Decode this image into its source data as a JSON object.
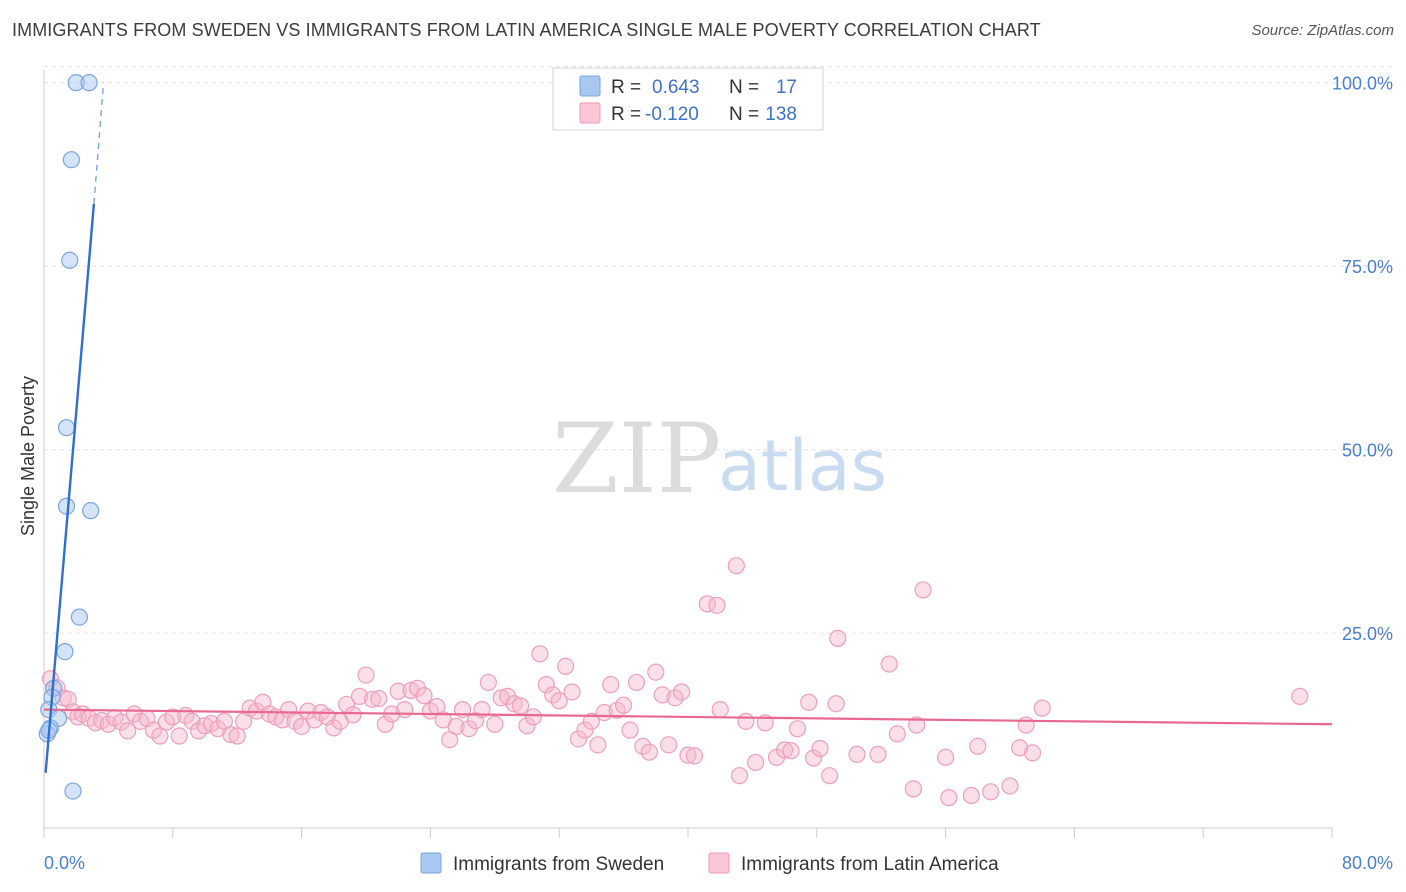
{
  "title": "IMMIGRANTS FROM SWEDEN VS IMMIGRANTS FROM LATIN AMERICA SINGLE MALE POVERTY CORRELATION CHART",
  "source": "Source: ZipAtlas.com",
  "watermark": {
    "zip": "ZIP",
    "atlas": "atlas"
  },
  "colors": {
    "sweden": "#a9c8f0",
    "sweden_line": "#2f6fcf",
    "latam": "#f5b8cb",
    "latam_line": "#e8688f",
    "axis_text": "#4a7fd1"
  },
  "legend": {
    "r_label": "R =",
    "n_label": "N =",
    "sweden": {
      "r": "0.643",
      "n": "17"
    },
    "latam": {
      "r": "-0.120",
      "n": "138"
    }
  },
  "chart_data": {
    "type": "scatter",
    "title": "IMMIGRANTS FROM SWEDEN VS IMMIGRANTS FROM LATIN AMERICA SINGLE MALE POVERTY CORRELATION CHART",
    "xlabel": "",
    "ylabel": "Single Male Poverty",
    "xlim": [
      0,
      80
    ],
    "ylim": [
      0,
      105
    ],
    "x_tick_labels": [
      "0.0%",
      "80.0%"
    ],
    "y_ticks": [
      25,
      50,
      75,
      100
    ],
    "y_tick_labels": [
      "25.0%",
      "50.0%",
      "75.0%",
      "100.0%"
    ],
    "grid": true,
    "series": [
      {
        "name": "Immigrants from Sweden",
        "points": [
          [
            2.0,
            100.0
          ],
          [
            2.8,
            100.0
          ],
          [
            1.7,
            89.5
          ],
          [
            1.6,
            75.8
          ],
          [
            1.4,
            53.0
          ],
          [
            1.4,
            42.3
          ],
          [
            2.9,
            41.7
          ],
          [
            2.2,
            27.2
          ],
          [
            1.3,
            22.5
          ],
          [
            0.6,
            17.5
          ],
          [
            0.5,
            16.3
          ],
          [
            0.3,
            14.6
          ],
          [
            0.9,
            13.4
          ],
          [
            0.4,
            12.1
          ],
          [
            0.2,
            11.3
          ],
          [
            0.3,
            11.8
          ],
          [
            1.8,
            3.5
          ]
        ],
        "trend": {
          "x0": 0.1,
          "y0": 6.0,
          "x1": 3.1,
          "y1": 83.5,
          "dashed_to_x": 3.7,
          "dashed_to_y": 100.0
        }
      },
      {
        "name": "Immigrants from Latin America",
        "points": [
          [
            0.4,
            18.8
          ],
          [
            0.8,
            17.6
          ],
          [
            1.2,
            16.2
          ],
          [
            1.5,
            16.0
          ],
          [
            1.8,
            14.3
          ],
          [
            2.1,
            13.6
          ],
          [
            2.4,
            14.0
          ],
          [
            2.8,
            13.4
          ],
          [
            3.2,
            12.8
          ],
          [
            3.6,
            13.1
          ],
          [
            4.0,
            12.6
          ],
          [
            4.4,
            13.5
          ],
          [
            4.8,
            12.9
          ],
          [
            5.2,
            11.7
          ],
          [
            5.6,
            14.0
          ],
          [
            6.0,
            13.0
          ],
          [
            6.4,
            13.4
          ],
          [
            6.8,
            11.8
          ],
          [
            7.2,
            11.0
          ],
          [
            7.6,
            12.9
          ],
          [
            8.0,
            13.6
          ],
          [
            8.4,
            11.0
          ],
          [
            8.8,
            13.8
          ],
          [
            9.2,
            13.0
          ],
          [
            9.6,
            11.7
          ],
          [
            10.0,
            12.4
          ],
          [
            10.4,
            12.7
          ],
          [
            10.8,
            12.0
          ],
          [
            11.2,
            13.0
          ],
          [
            11.6,
            11.2
          ],
          [
            12.0,
            11.0
          ],
          [
            12.4,
            13.0
          ],
          [
            12.8,
            14.8
          ],
          [
            13.2,
            14.4
          ],
          [
            13.6,
            15.6
          ],
          [
            14.0,
            14.0
          ],
          [
            14.4,
            13.6
          ],
          [
            14.8,
            13.2
          ],
          [
            15.2,
            14.6
          ],
          [
            15.6,
            13.0
          ],
          [
            16.0,
            12.3
          ],
          [
            16.4,
            14.4
          ],
          [
            16.8,
            13.2
          ],
          [
            17.2,
            14.2
          ],
          [
            17.6,
            13.6
          ],
          [
            18.0,
            12.1
          ],
          [
            18.4,
            13.0
          ],
          [
            18.8,
            15.3
          ],
          [
            19.2,
            13.9
          ],
          [
            19.6,
            16.4
          ],
          [
            20.0,
            19.3
          ],
          [
            20.4,
            16.0
          ],
          [
            20.8,
            16.1
          ],
          [
            21.2,
            12.6
          ],
          [
            21.6,
            14.0
          ],
          [
            22.0,
            17.1
          ],
          [
            22.4,
            14.6
          ],
          [
            22.8,
            17.2
          ],
          [
            23.2,
            17.5
          ],
          [
            23.6,
            16.5
          ],
          [
            24.0,
            14.4
          ],
          [
            24.4,
            15.0
          ],
          [
            24.8,
            13.2
          ],
          [
            25.2,
            10.5
          ],
          [
            25.6,
            12.3
          ],
          [
            26.0,
            14.6
          ],
          [
            26.4,
            12.0
          ],
          [
            26.8,
            13.1
          ],
          [
            27.2,
            14.6
          ],
          [
            27.6,
            18.3
          ],
          [
            28.0,
            12.6
          ],
          [
            28.4,
            16.2
          ],
          [
            28.8,
            16.4
          ],
          [
            29.2,
            15.4
          ],
          [
            29.6,
            15.1
          ],
          [
            30.0,
            12.4
          ],
          [
            30.4,
            13.6
          ],
          [
            30.8,
            22.2
          ],
          [
            31.2,
            18.0
          ],
          [
            31.6,
            16.6
          ],
          [
            32.0,
            15.8
          ],
          [
            32.4,
            20.5
          ],
          [
            32.8,
            17.0
          ],
          [
            33.2,
            10.6
          ],
          [
            33.6,
            11.8
          ],
          [
            34.0,
            13.0
          ],
          [
            34.4,
            9.8
          ],
          [
            34.8,
            14.2
          ],
          [
            35.2,
            18.0
          ],
          [
            35.6,
            14.5
          ],
          [
            36.0,
            15.2
          ],
          [
            36.4,
            11.8
          ],
          [
            36.8,
            18.3
          ],
          [
            37.2,
            9.6
          ],
          [
            37.6,
            8.8
          ],
          [
            38.0,
            19.7
          ],
          [
            38.4,
            16.6
          ],
          [
            38.8,
            9.8
          ],
          [
            39.2,
            16.2
          ],
          [
            39.6,
            17.0
          ],
          [
            40.0,
            8.4
          ],
          [
            40.4,
            8.3
          ],
          [
            41.2,
            29.0
          ],
          [
            41.8,
            28.8
          ],
          [
            42.0,
            14.6
          ],
          [
            43.0,
            34.2
          ],
          [
            43.2,
            5.6
          ],
          [
            43.6,
            13.0
          ],
          [
            44.2,
            7.4
          ],
          [
            44.8,
            12.8
          ],
          [
            45.5,
            8.1
          ],
          [
            46.0,
            9.1
          ],
          [
            46.4,
            9.0
          ],
          [
            46.8,
            12.0
          ],
          [
            47.5,
            15.6
          ],
          [
            47.8,
            8.0
          ],
          [
            48.2,
            9.3
          ],
          [
            48.8,
            5.6
          ],
          [
            49.2,
            15.4
          ],
          [
            49.3,
            24.3
          ],
          [
            50.5,
            8.5
          ],
          [
            51.8,
            8.5
          ],
          [
            52.5,
            20.8
          ],
          [
            53.0,
            11.3
          ],
          [
            54.0,
            3.8
          ],
          [
            54.2,
            12.5
          ],
          [
            54.6,
            30.9
          ],
          [
            56.0,
            8.1
          ],
          [
            56.2,
            2.6
          ],
          [
            57.6,
            2.9
          ],
          [
            58.0,
            9.6
          ],
          [
            58.8,
            3.4
          ],
          [
            60.0,
            4.2
          ],
          [
            60.6,
            9.4
          ],
          [
            61.0,
            12.5
          ],
          [
            61.4,
            8.7
          ],
          [
            62.0,
            14.8
          ],
          [
            78.0,
            16.4
          ]
        ],
        "trend": {
          "x0": 0,
          "y0": 14.6,
          "x1": 80,
          "y1": 12.6
        }
      }
    ]
  },
  "bottom_legend": [
    {
      "label": "Immigrants from Sweden"
    },
    {
      "label": "Immigrants from Latin America"
    }
  ]
}
